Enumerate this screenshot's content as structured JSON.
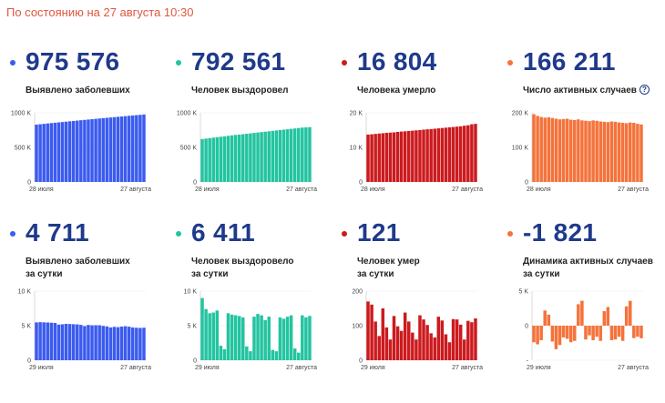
{
  "status": "По состоянию на 27 августа 10:30",
  "cards": [
    {
      "value": "975 576",
      "label": "Выявлено заболевших",
      "label2": "",
      "info": false,
      "color": "#3b5bef",
      "cumulative": true
    },
    {
      "value": "792 561",
      "label": "Человек выздоровел",
      "label2": "",
      "info": false,
      "color": "#23c4a0",
      "cumulative": true
    },
    {
      "value": "16 804",
      "label": "Человека умерло",
      "label2": "",
      "info": false,
      "color": "#cc1a1e",
      "cumulative": true
    },
    {
      "value": "166 211",
      "label": "Число активных случаев",
      "label2": "",
      "info": true,
      "color": "#f4733c",
      "cumulative": true
    },
    {
      "value": "4 711",
      "label": "Выявлено заболевших",
      "label2": "за сутки",
      "info": false,
      "color": "#3b5bef",
      "cumulative": false
    },
    {
      "value": "6 411",
      "label": "Человек выздоровело",
      "label2": "за сутки",
      "info": false,
      "color": "#23c4a0",
      "cumulative": false
    },
    {
      "value": "121",
      "label": "Человек умер",
      "label2": "за сутки",
      "info": false,
      "color": "#cc1a1e",
      "cumulative": false
    },
    {
      "value": "-1 821",
      "label": "Динамика активных случаев",
      "label2": "за сутки",
      "info": false,
      "color": "#f4733c",
      "cumulative": false
    }
  ],
  "chart_data": [
    {
      "type": "bar",
      "xstart": "28 июля",
      "xend": "27 августа",
      "yticks": [
        "0",
        "500 K",
        "1000 K"
      ],
      "ylim": [
        0,
        1000000
      ],
      "values": [
        828990,
        834499,
        839981,
        845443,
        850870,
        856264,
        861423,
        866627,
        871894,
        877135,
        882347,
        887536,
        892654,
        897599,
        902701,
        907758,
        912823,
        917884,
        922853,
        927745,
        932493,
        937321,
        942106,
        946976,
        951897,
        956749,
        961493,
        966189,
        970865,
        975576
      ]
    },
    {
      "type": "bar",
      "xstart": "28 июля",
      "xend": "27 августа",
      "yticks": [
        "0",
        "500 K",
        "1000 K"
      ],
      "ylim": [
        0,
        1000000
      ],
      "values": [
        621000,
        627000,
        634000,
        641000,
        648000,
        654000,
        660000,
        667000,
        674000,
        680000,
        685000,
        691000,
        697000,
        703000,
        709000,
        715000,
        721000,
        727000,
        733000,
        739000,
        745000,
        751000,
        756000,
        762000,
        768000,
        774000,
        780000,
        786000,
        789000,
        792561
      ]
    },
    {
      "type": "bar",
      "xstart": "28 июля",
      "xend": "27 августа",
      "yticks": [
        "0",
        "10 K",
        "20 K"
      ],
      "ylim": [
        0,
        20000
      ],
      "values": [
        13700,
        13790,
        13900,
        14000,
        14100,
        14200,
        14280,
        14350,
        14470,
        14580,
        14650,
        14740,
        14830,
        14930,
        15000,
        15130,
        15230,
        15300,
        15400,
        15500,
        15600,
        15700,
        15800,
        15900,
        16000,
        16100,
        16260,
        16400,
        16683,
        16804
      ]
    },
    {
      "type": "bar",
      "xstart": "28 июля",
      "xend": "27 августа",
      "yticks": [
        "0",
        "100 K",
        "200 K"
      ],
      "ylim": [
        0,
        200000
      ],
      "values": [
        196000,
        191000,
        188000,
        186000,
        187000,
        185000,
        183000,
        181000,
        182000,
        183000,
        180000,
        179000,
        181000,
        178000,
        177000,
        176000,
        178000,
        177000,
        175000,
        174000,
        173000,
        175000,
        174000,
        172000,
        171000,
        170000,
        172000,
        171000,
        168000,
        166211
      ]
    },
    {
      "type": "bar",
      "xstart": "29 июля",
      "xend": "27 августа",
      "yticks": [
        "0",
        "5 K",
        "10 K"
      ],
      "ylim": [
        0,
        10000
      ],
      "values": [
        5475,
        5509,
        5482,
        5462,
        5427,
        5394,
        5159,
        5204,
        5267,
        5241,
        5212,
        5189,
        5118,
        4945,
        5102,
        5057,
        5065,
        5061,
        4969,
        4892,
        4748,
        4828,
        4785,
        4870,
        4921,
        4852,
        4744,
        4696,
        4676,
        4711
      ]
    },
    {
      "type": "bar",
      "xstart": "29 июля",
      "xend": "27 августа",
      "yticks": [
        "0",
        "5 K",
        "10 K"
      ],
      "ylim": [
        0,
        10000
      ],
      "values": [
        9000,
        7400,
        6800,
        6900,
        7200,
        2100,
        1600,
        6800,
        6600,
        6500,
        6400,
        6200,
        2000,
        1300,
        6300,
        6700,
        6500,
        5800,
        6300,
        1500,
        1300,
        6200,
        6000,
        6300,
        6500,
        1700,
        1100,
        6500,
        6200,
        6411
      ]
    },
    {
      "type": "bar",
      "xstart": "29 июля",
      "xend": "27 августа",
      "yticks": [
        "0",
        "100",
        "200"
      ],
      "ylim": [
        0,
        200
      ],
      "values": [
        170,
        161,
        112,
        70,
        150,
        95,
        60,
        128,
        98,
        85,
        138,
        112,
        80,
        60,
        130,
        118,
        102,
        78,
        66,
        126,
        115,
        75,
        52,
        119,
        118,
        103,
        60,
        114,
        110,
        121
      ]
    },
    {
      "type": "bar",
      "xstart": "29 июля",
      "xend": "27 августа",
      "yticks": [
        "-",
        "0",
        "5 K"
      ],
      "ylim": [
        -5000,
        5000
      ],
      "values": [
        -2400,
        -2700,
        -2100,
        2200,
        1600,
        -2300,
        -3400,
        -2800,
        -1700,
        -1900,
        -2400,
        -2200,
        3100,
        3600,
        -2000,
        -1400,
        -2100,
        -1600,
        -2200,
        2100,
        2700,
        -2100,
        -2000,
        -1600,
        -2200,
        2800,
        3600,
        -1800,
        -1600,
        -1821
      ]
    }
  ]
}
